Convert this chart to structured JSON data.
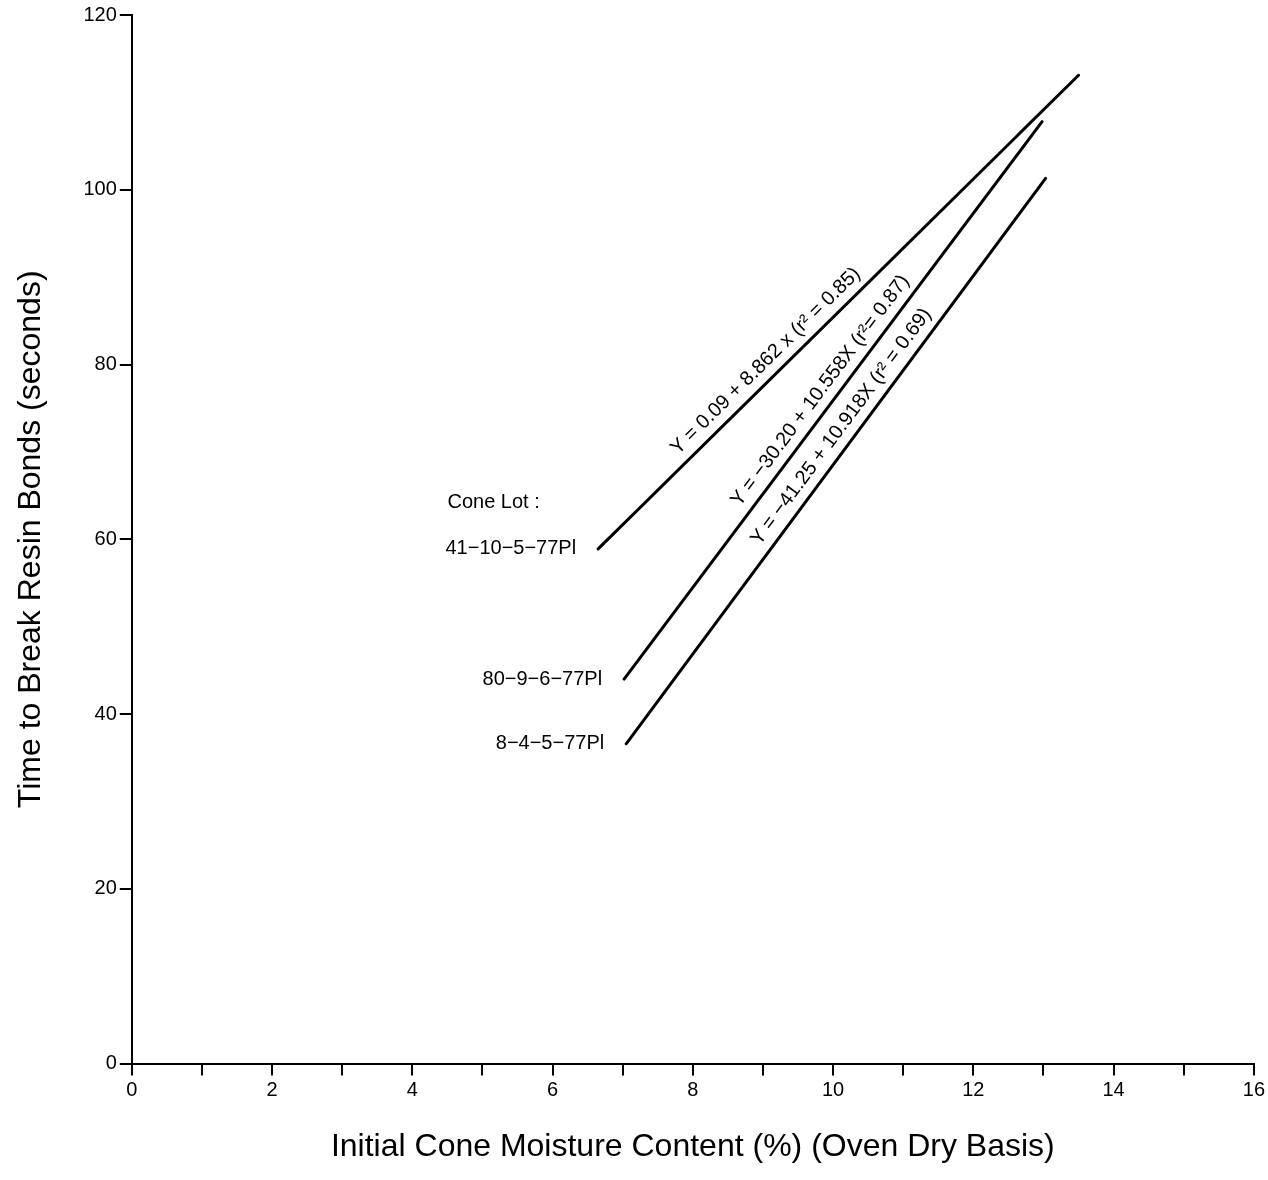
{
  "chart_data": {
    "type": "line",
    "xlabel": "Initial Cone Moisture Content (%) (Oven Dry Basis)",
    "ylabel": "Time to Break Resin Bonds (seconds)",
    "legend_title": "Cone Lot :",
    "series": [
      {
        "name": "41−10−5−77Pl",
        "color": "#000000",
        "x": [
          6.65,
          13.5
        ],
        "values": [
          58.9,
          113.1
        ]
      },
      {
        "name": "80−9−6−77Pl",
        "color": "#000000",
        "x": [
          7.02,
          12.98
        ],
        "values": [
          44.0,
          107.8
        ]
      },
      {
        "name": "8−4−5−77Pl",
        "color": "#000000",
        "x": [
          7.05,
          13.03
        ],
        "values": [
          36.6,
          101.3
        ]
      }
    ],
    "annotations": [
      {
        "text": "Y = 0.09 + 8.862 x (r² = 0.85)",
        "x": 9.2,
        "y": 79.1
      },
      {
        "text": "Y = −30.20 + 10.558X (r²= 0.87)",
        "x": 10.0,
        "y": 75.9
      },
      {
        "text": "Y = −41.25 + 10.918X (r² = 0.69)",
        "x": 10.3,
        "y": 71.8
      }
    ],
    "xlim": [
      0,
      16
    ],
    "xticks": [
      0,
      {
        "value": 1,
        "label": null
      },
      2,
      {
        "value": 3,
        "label": null
      },
      4,
      {
        "value": 5,
        "label": null
      },
      6,
      {
        "value": 7,
        "label": null
      },
      8,
      {
        "value": 9,
        "label": null
      },
      10,
      {
        "value": 11,
        "label": null
      },
      12,
      {
        "value": 13,
        "label": null
      },
      14,
      {
        "value": 15,
        "label": null
      },
      16
    ],
    "ylim": [
      0,
      120
    ],
    "yticks": [
      0,
      20,
      40,
      60,
      80,
      100,
      120
    ],
    "grid": false,
    "legend": false,
    "marker": "none",
    "line_style": "solid"
  }
}
